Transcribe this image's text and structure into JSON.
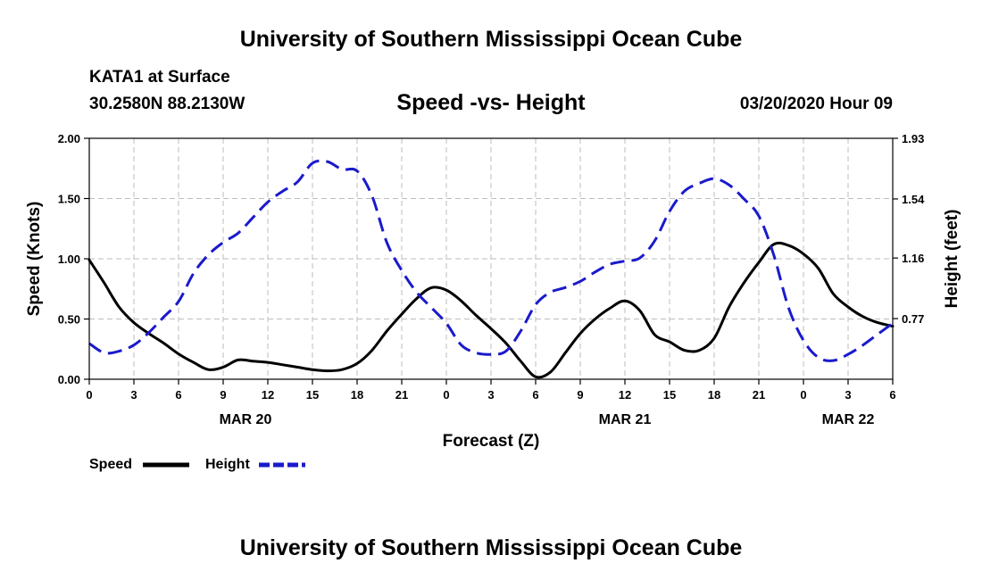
{
  "header": {
    "title": "University of Southern Mississippi Ocean Cube",
    "station_name": "KATA1 at Surface",
    "station_coords": "30.2580N 88.2130W",
    "chart_title": "Speed -vs- Height",
    "datetime": "03/20/2020 Hour 09"
  },
  "footer": {
    "title": "University of Southern Mississippi Ocean Cube"
  },
  "colors": {
    "speed": "#000000",
    "height": "#1a1acc",
    "grid": "#bdbdbd"
  },
  "chart_data": {
    "type": "line",
    "title": "Speed -vs- Height",
    "xlabel": "Forecast (Z)",
    "ylabel_left": "Speed (Knots)",
    "ylabel_right": "Height (feet)",
    "xlim": [
      0,
      54
    ],
    "ylim_left": [
      0,
      2
    ],
    "ylim_right": [
      0.38,
      1.93
    ],
    "x_ticks": [
      0,
      3,
      6,
      9,
      12,
      15,
      18,
      21,
      24,
      27,
      30,
      33,
      36,
      39,
      42,
      45,
      48,
      51,
      54
    ],
    "x_tick_labels": [
      "0",
      "3",
      "6",
      "9",
      "12",
      "15",
      "18",
      "21",
      "0",
      "3",
      "6",
      "9",
      "12",
      "15",
      "18",
      "21",
      "0",
      "3",
      "6"
    ],
    "y_left_ticks": [
      0,
      0.5,
      1,
      1.5,
      2
    ],
    "y_left_tick_labels": [
      "0.00",
      "0.50",
      "1.00",
      "1.50",
      "2.00"
    ],
    "y_right_ticks": [
      0.77,
      1.16,
      1.54,
      1.93
    ],
    "y_right_tick_labels": [
      "0.77",
      "1.16",
      "1.54",
      "1.93"
    ],
    "date_labels": [
      {
        "x": 10.5,
        "label": "MAR 20"
      },
      {
        "x": 36,
        "label": "MAR 21"
      },
      {
        "x": 51,
        "label": "MAR 22"
      }
    ],
    "grid": true,
    "legend_position": "bottom-left",
    "series": [
      {
        "name": "Speed",
        "axis": "left",
        "style": "solid",
        "x": [
          0,
          1,
          2,
          3,
          4,
          5,
          6,
          7,
          8,
          9,
          10,
          11,
          12,
          13,
          14,
          15,
          16,
          17,
          18,
          19,
          20,
          21,
          22,
          23,
          24,
          25,
          26,
          27,
          28,
          29,
          30,
          31,
          32,
          33,
          34,
          35,
          36,
          37,
          38,
          39,
          40,
          41,
          42,
          43,
          44,
          45,
          46,
          47,
          48,
          49,
          50,
          51,
          52,
          53,
          54
        ],
        "values": [
          0.99,
          0.8,
          0.6,
          0.47,
          0.38,
          0.3,
          0.21,
          0.14,
          0.08,
          0.1,
          0.16,
          0.15,
          0.14,
          0.12,
          0.1,
          0.08,
          0.07,
          0.08,
          0.13,
          0.24,
          0.4,
          0.54,
          0.67,
          0.76,
          0.74,
          0.65,
          0.53,
          0.42,
          0.3,
          0.15,
          0.02,
          0.06,
          0.22,
          0.38,
          0.5,
          0.59,
          0.65,
          0.57,
          0.37,
          0.31,
          0.24,
          0.24,
          0.34,
          0.6,
          0.8,
          0.97,
          1.12,
          1.11,
          1.04,
          0.92,
          0.71,
          0.6,
          0.52,
          0.47,
          0.44
        ]
      },
      {
        "name": "Height",
        "axis": "right",
        "style": "dashed",
        "x": [
          0,
          1,
          2,
          3,
          4,
          5,
          6,
          7,
          8,
          9,
          10,
          11,
          12,
          13,
          14,
          15,
          16,
          17,
          18,
          19,
          20,
          21,
          22,
          23,
          24,
          25,
          26,
          27,
          28,
          29,
          30,
          31,
          32,
          33,
          34,
          35,
          36,
          37,
          38,
          39,
          40,
          41,
          42,
          43,
          44,
          45,
          46,
          47,
          48,
          49,
          50,
          51,
          52,
          53,
          54
        ],
        "values": [
          0.61,
          0.55,
          0.56,
          0.6,
          0.68,
          0.78,
          0.88,
          1.06,
          1.18,
          1.26,
          1.32,
          1.42,
          1.52,
          1.59,
          1.65,
          1.77,
          1.78,
          1.73,
          1.72,
          1.56,
          1.26,
          1.08,
          0.94,
          0.84,
          0.74,
          0.6,
          0.55,
          0.54,
          0.56,
          0.69,
          0.86,
          0.94,
          0.97,
          1.01,
          1.07,
          1.12,
          1.14,
          1.16,
          1.27,
          1.46,
          1.59,
          1.64,
          1.67,
          1.63,
          1.54,
          1.43,
          1.18,
          0.84,
          0.63,
          0.52,
          0.5,
          0.54,
          0.6,
          0.67,
          0.74
        ]
      }
    ]
  }
}
